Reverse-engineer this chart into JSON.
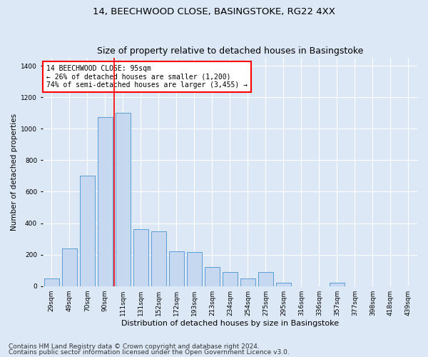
{
  "title": "14, BEECHWOOD CLOSE, BASINGSTOKE, RG22 4XX",
  "subtitle": "Size of property relative to detached houses in Basingstoke",
  "xlabel": "Distribution of detached houses by size in Basingstoke",
  "ylabel": "Number of detached properties",
  "categories": [
    "29sqm",
    "49sqm",
    "70sqm",
    "90sqm",
    "111sqm",
    "131sqm",
    "152sqm",
    "172sqm",
    "193sqm",
    "213sqm",
    "234sqm",
    "254sqm",
    "275sqm",
    "295sqm",
    "316sqm",
    "336sqm",
    "357sqm",
    "377sqm",
    "398sqm",
    "418sqm",
    "439sqm"
  ],
  "values": [
    50,
    240,
    700,
    1075,
    1100,
    360,
    350,
    220,
    215,
    120,
    90,
    50,
    90,
    20,
    0,
    0,
    20,
    0,
    0,
    0,
    0
  ],
  "bar_color": "#c5d8f0",
  "bar_edge_color": "#5b9bd5",
  "vline_x_index": 3.5,
  "vline_color": "red",
  "annotation_text": "14 BEECHWOOD CLOSE: 95sqm\n← 26% of detached houses are smaller (1,200)\n74% of semi-detached houses are larger (3,455) →",
  "annotation_box_color": "white",
  "annotation_box_edge": "red",
  "footnote1": "Contains HM Land Registry data © Crown copyright and database right 2024.",
  "footnote2": "Contains public sector information licensed under the Open Government Licence v3.0.",
  "bg_color": "#dce8f5",
  "plot_bg_color": "#dce8f5",
  "ylim": [
    0,
    1450
  ],
  "title_fontsize": 9.5,
  "xlabel_fontsize": 8,
  "ylabel_fontsize": 7.5,
  "tick_fontsize": 6.5,
  "annot_fontsize": 7,
  "footnote_fontsize": 6.5
}
